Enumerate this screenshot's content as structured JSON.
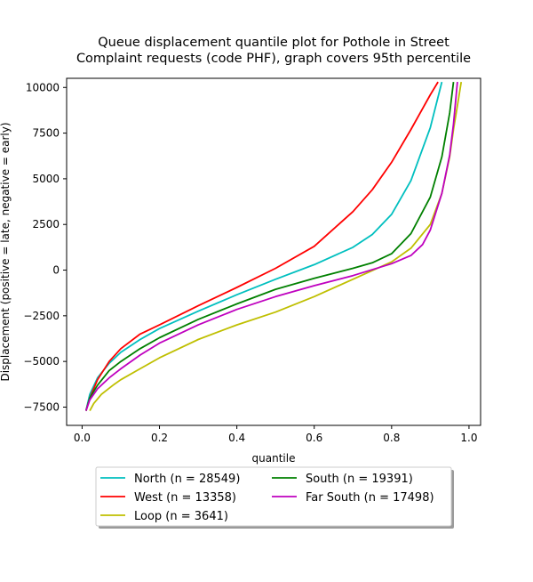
{
  "chart_data": {
    "type": "line",
    "title_line1": "Queue displacement quantile plot for Pothole in Street",
    "title_line2": "Complaint  requests (code PHF), graph covers 95th percentile",
    "xlabel": "quantile",
    "ylabel": "Displacement (positive = late, negative = early)",
    "xlim": [
      -0.04,
      1.03
    ],
    "ylim": [
      -8500,
      10500
    ],
    "xticks": [
      0.0,
      0.2,
      0.4,
      0.6,
      0.8,
      1.0
    ],
    "xtick_labels": [
      "0.0",
      "0.2",
      "0.4",
      "0.6",
      "0.8",
      "1.0"
    ],
    "yticks": [
      -7500,
      -5000,
      -2500,
      0,
      2500,
      5000,
      7500,
      10000
    ],
    "ytick_labels": [
      "−7500",
      "−5000",
      "−2500",
      "0",
      "2500",
      "5000",
      "7500",
      "10000"
    ],
    "grid": false,
    "legend_placement": "below",
    "series": [
      {
        "name": "North (n = 28549)",
        "color": "#00bfbf",
        "x": [
          0.01,
          0.02,
          0.04,
          0.07,
          0.1,
          0.15,
          0.2,
          0.3,
          0.4,
          0.5,
          0.6,
          0.7,
          0.75,
          0.8,
          0.85,
          0.9,
          0.93
        ],
        "y": [
          -7700,
          -6800,
          -5900,
          -5100,
          -4500,
          -3800,
          -3200,
          -2250,
          -1350,
          -500,
          300,
          1250,
          1950,
          3050,
          4900,
          7800,
          10300
        ]
      },
      {
        "name": "West (n = 13358)",
        "color": "#ff0000",
        "x": [
          0.01,
          0.02,
          0.04,
          0.07,
          0.1,
          0.15,
          0.2,
          0.3,
          0.4,
          0.5,
          0.6,
          0.7,
          0.75,
          0.8,
          0.85,
          0.9,
          0.92
        ],
        "y": [
          -7700,
          -7000,
          -6000,
          -5000,
          -4300,
          -3500,
          -3000,
          -1950,
          -950,
          100,
          1300,
          3200,
          4400,
          5900,
          7700,
          9600,
          10300
        ]
      },
      {
        "name": "Loop (n = 3641)",
        "color": "#bfbf00",
        "x": [
          0.02,
          0.03,
          0.05,
          0.08,
          0.1,
          0.15,
          0.2,
          0.3,
          0.4,
          0.5,
          0.6,
          0.7,
          0.8,
          0.85,
          0.9,
          0.93,
          0.95,
          0.96,
          0.97,
          0.98
        ],
        "y": [
          -7700,
          -7300,
          -6800,
          -6300,
          -6000,
          -5400,
          -4800,
          -3800,
          -3000,
          -2300,
          -1450,
          -500,
          450,
          1200,
          2500,
          4200,
          6200,
          7700,
          9000,
          10300
        ]
      },
      {
        "name": "South (n = 19391)",
        "color": "#008000",
        "x": [
          0.01,
          0.02,
          0.04,
          0.07,
          0.1,
          0.15,
          0.2,
          0.3,
          0.4,
          0.5,
          0.6,
          0.7,
          0.75,
          0.8,
          0.85,
          0.9,
          0.93,
          0.95,
          0.96
        ],
        "y": [
          -7700,
          -7000,
          -6300,
          -5500,
          -5000,
          -4300,
          -3700,
          -2700,
          -1850,
          -1050,
          -450,
          100,
          400,
          900,
          2000,
          4000,
          6200,
          8600,
          10300
        ]
      },
      {
        "name": "Far South (n = 17498)",
        "color": "#bf00bf",
        "x": [
          0.01,
          0.02,
          0.04,
          0.07,
          0.1,
          0.15,
          0.2,
          0.3,
          0.4,
          0.5,
          0.6,
          0.7,
          0.8,
          0.85,
          0.88,
          0.9,
          0.93,
          0.95,
          0.96,
          0.97
        ],
        "y": [
          -7700,
          -7100,
          -6500,
          -5900,
          -5400,
          -4650,
          -4000,
          -3000,
          -2150,
          -1450,
          -850,
          -300,
          350,
          800,
          1400,
          2200,
          4200,
          6300,
          8000,
          10300
        ]
      }
    ]
  }
}
